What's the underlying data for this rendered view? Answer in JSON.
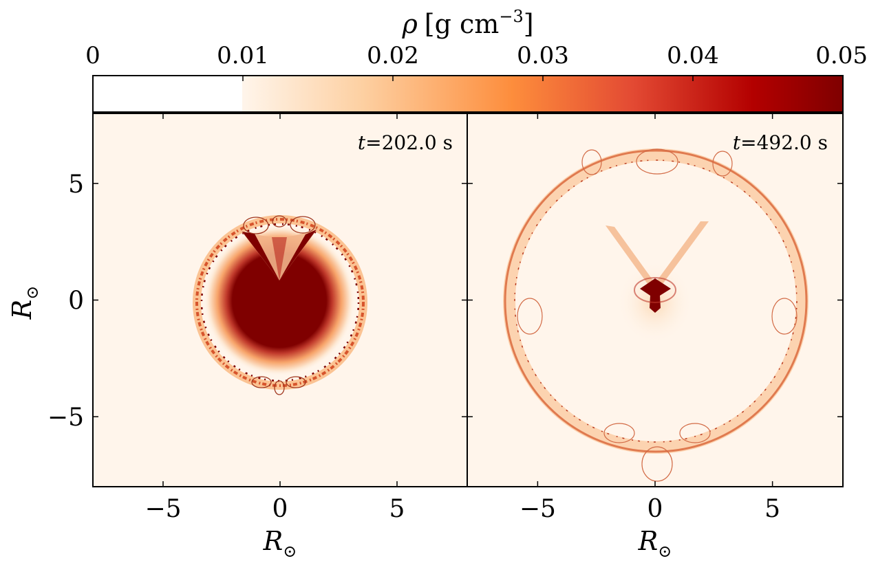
{
  "colorbar": {
    "label_symbol": "ρ",
    "label_unit": "[g cm",
    "label_exponent": "−3",
    "label_close": "]",
    "min": 0,
    "max": 0.05,
    "ticks": [
      "0",
      "0.01",
      "0.02",
      "0.03",
      "0.04",
      "0.05"
    ],
    "tick_values": [
      0,
      0.01,
      0.02,
      0.03,
      0.04,
      0.05
    ],
    "colors": {
      "white_cutoff": "#ffffff",
      "stops": [
        "#fff5eb",
        "#fdd0a2",
        "#fd8d3c",
        "#d94801",
        "#b30000",
        "#7f0000"
      ]
    }
  },
  "axes": {
    "xlabel": "R",
    "ylabel": "R",
    "label_subscript": "⊙",
    "xlim": [
      -8,
      8
    ],
    "ylim": [
      -8,
      8
    ],
    "tick_values": [
      -5,
      0,
      5
    ],
    "tick_labels": [
      "−5",
      "0",
      "5"
    ]
  },
  "panels": [
    {
      "time_symbol": "t",
      "time_text": "=202.0 s",
      "shell_radius": 3.7,
      "core_radius": 1.8
    },
    {
      "time_symbol": "t",
      "time_text": "=492.0 s",
      "shell_radius": 6.5,
      "core_radius": 0.4
    }
  ],
  "chart_data": {
    "type": "heatmap",
    "quantity": "ρ [g cm−3]",
    "colorbar_range": [
      0,
      0.05
    ],
    "xlabel": "R⊙",
    "ylabel": "R⊙",
    "xlim": [
      -8,
      8
    ],
    "ylim": [
      -8,
      8
    ],
    "panels": [
      {
        "label": "t =202.0 s"
      },
      {
        "label": "t =492.0 s"
      }
    ]
  }
}
